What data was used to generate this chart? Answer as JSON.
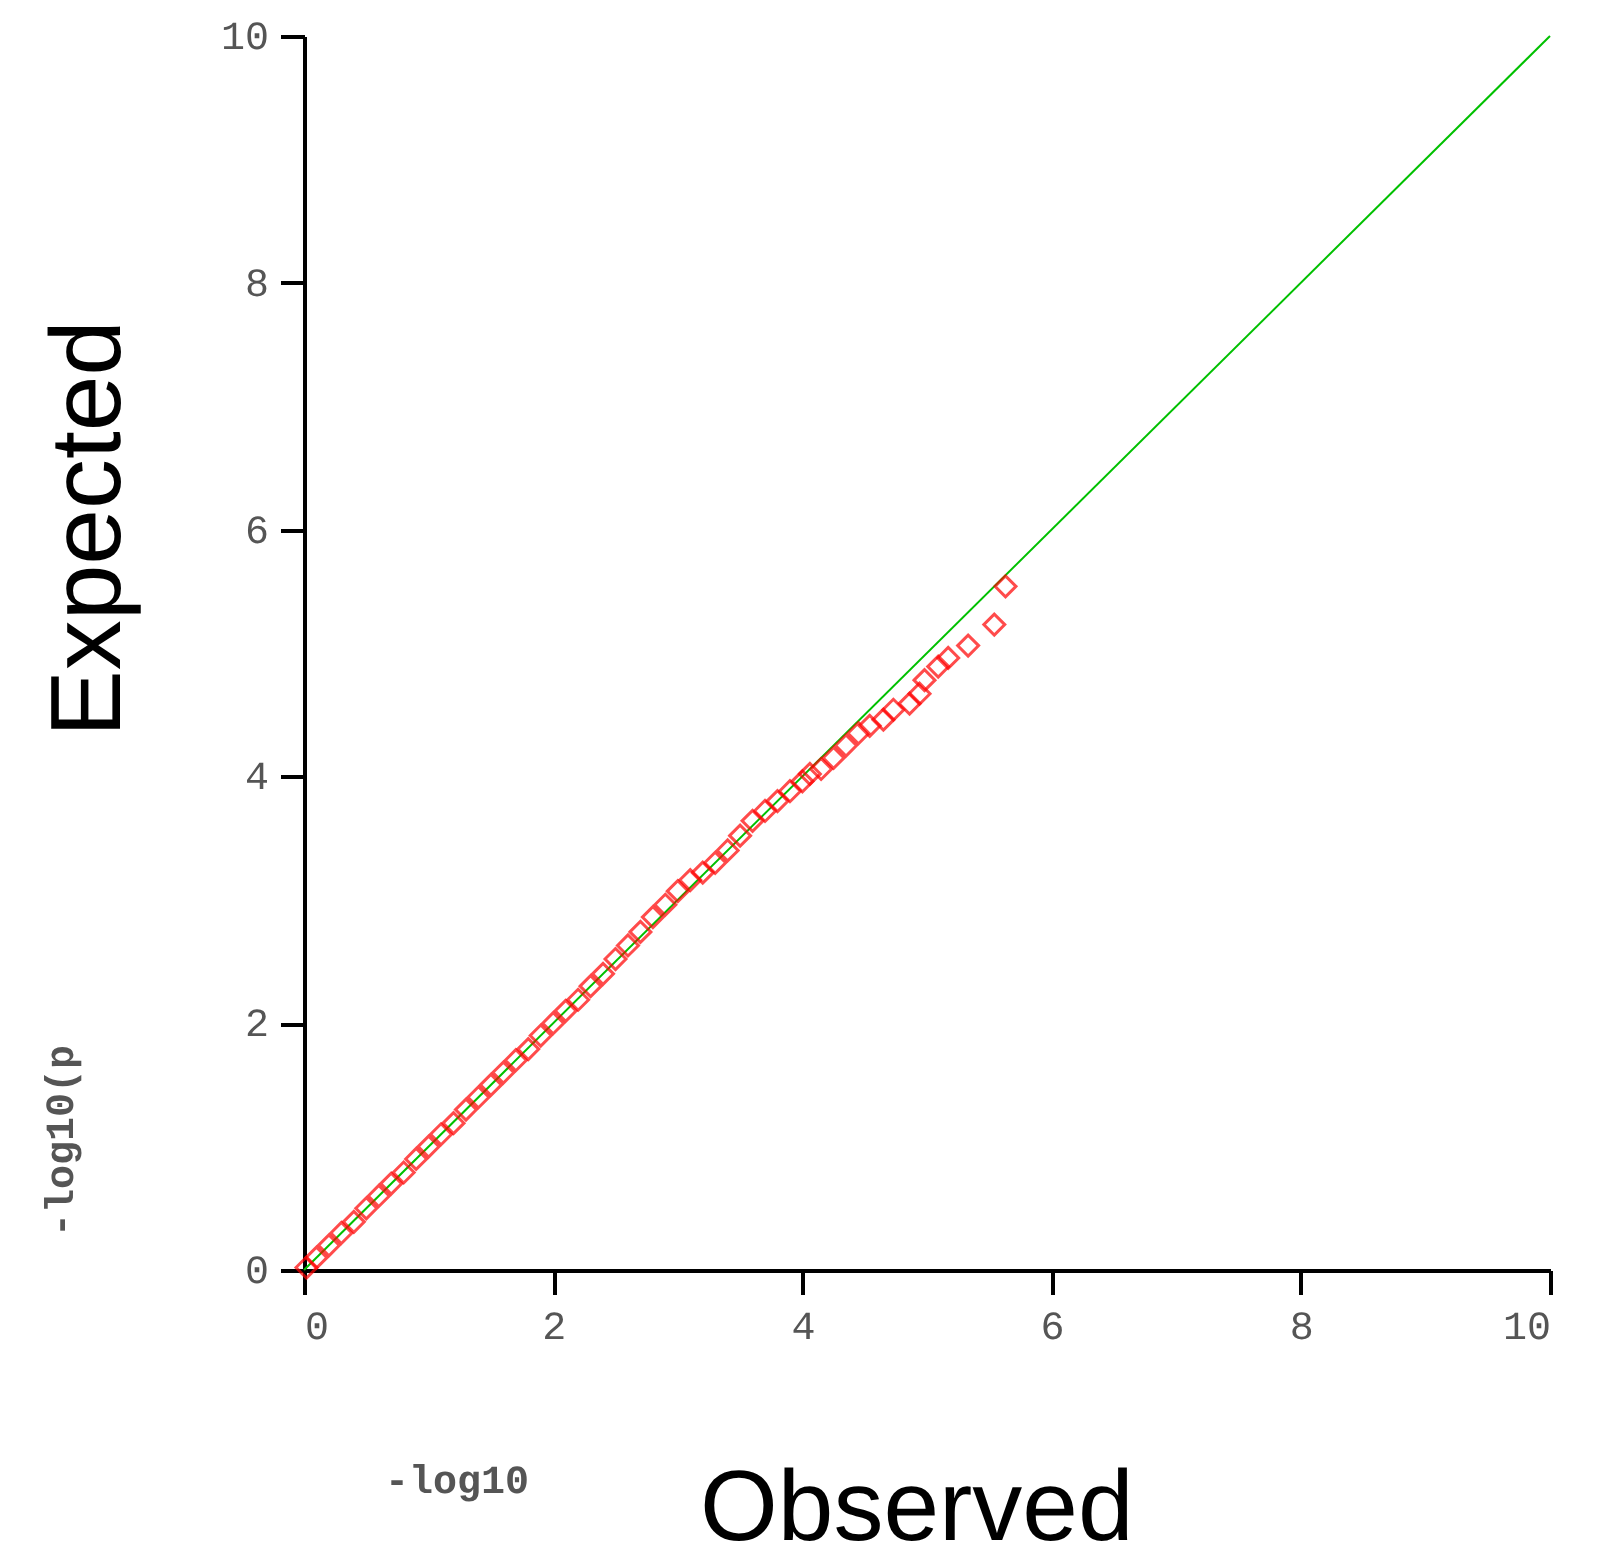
{
  "chart_data": {
    "type": "scatter",
    "xlabel": "-log10",
    "ylabel": "-log10(p",
    "annotations": [
      "Expected",
      "Observed"
    ],
    "xlim": [
      0,
      10
    ],
    "ylim": [
      0,
      10
    ],
    "xticks": [
      0,
      2,
      4,
      6,
      8,
      10
    ],
    "yticks": [
      0,
      2,
      4,
      6,
      8,
      10
    ],
    "grid": false,
    "marker": "diamond",
    "series": [
      {
        "type": "line",
        "marker": "none",
        "color": "#00c000",
        "x": [
          0,
          10
        ],
        "values": [
          0,
          10
        ]
      },
      {
        "color": "#ff0000",
        "x": [
          0.02,
          0.1,
          0.2,
          0.3,
          0.4,
          0.5,
          0.6,
          0.7,
          0.8,
          0.9,
          1.0,
          1.1,
          1.2,
          1.3,
          1.4,
          1.5,
          1.6,
          1.7,
          1.8,
          1.9,
          2.0,
          2.1,
          2.2,
          2.3,
          2.4,
          2.5,
          2.6,
          2.7,
          2.8,
          2.9,
          3.0,
          3.1,
          3.2,
          3.3,
          3.4,
          3.5,
          3.6,
          3.7,
          3.8,
          3.9,
          4.0,
          4.06,
          4.15,
          4.25,
          4.35,
          4.45,
          4.54,
          4.65,
          4.73,
          4.86,
          4.94,
          4.98,
          5.09,
          5.17,
          5.33,
          5.54,
          5.63
        ],
        "values": [
          0.02,
          0.1,
          0.2,
          0.3,
          0.39,
          0.5,
          0.6,
          0.7,
          0.79,
          0.9,
          1.0,
          1.1,
          1.19,
          1.3,
          1.4,
          1.5,
          1.6,
          1.7,
          1.79,
          1.9,
          2.0,
          2.1,
          2.19,
          2.3,
          2.4,
          2.52,
          2.63,
          2.74,
          2.86,
          2.96,
          3.07,
          3.16,
          3.22,
          3.3,
          3.4,
          3.52,
          3.64,
          3.72,
          3.8,
          3.88,
          3.96,
          4.02,
          4.06,
          4.15,
          4.25,
          4.35,
          4.41,
          4.46,
          4.54,
          4.59,
          4.67,
          4.78,
          4.89,
          4.96,
          5.06,
          5.23,
          5.54
        ]
      }
    ]
  }
}
